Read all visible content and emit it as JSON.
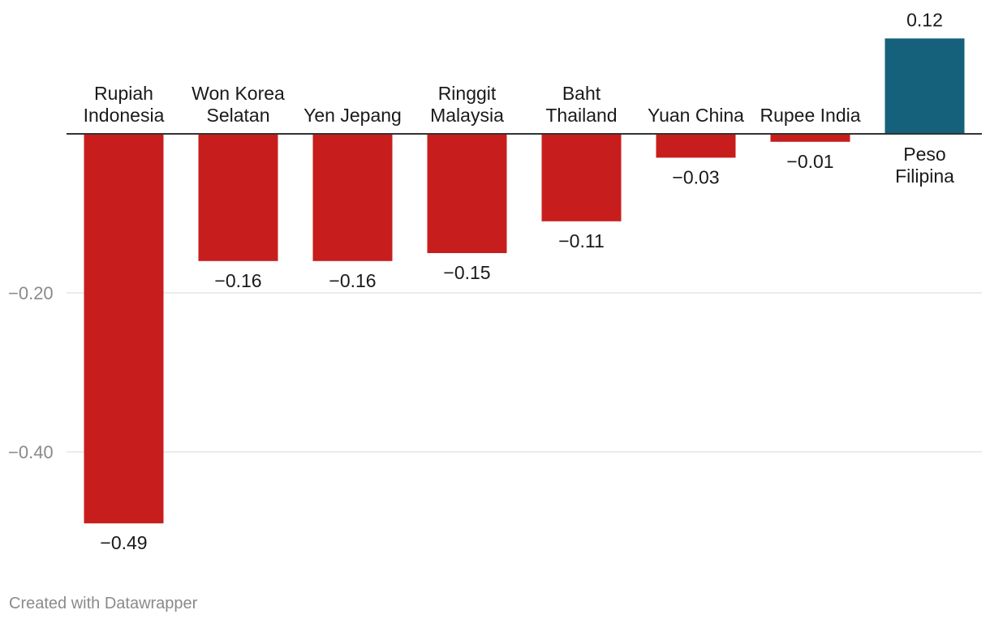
{
  "chart_data": {
    "type": "bar",
    "title": "",
    "xlabel": "",
    "ylabel": "",
    "categories": [
      [
        "Rupiah",
        "Indonesia"
      ],
      [
        "Won Korea",
        "Selatan"
      ],
      [
        "Yen Jepang"
      ],
      [
        "Ringgit",
        "Malaysia"
      ],
      [
        "Baht",
        "Thailand"
      ],
      [
        "Yuan China"
      ],
      [
        "Rupee India"
      ],
      [
        "Peso",
        "Filipina"
      ]
    ],
    "values": [
      -0.49,
      -0.16,
      -0.16,
      -0.15,
      -0.11,
      -0.03,
      -0.01,
      0.12
    ],
    "value_labels": [
      "−0.49",
      "−0.16",
      "−0.16",
      "−0.15",
      "−0.11",
      "−0.03",
      "−0.01",
      "0.12"
    ],
    "yticks": [
      {
        "value": -0.2,
        "label": "−0.20"
      },
      {
        "value": -0.4,
        "label": "−0.40"
      }
    ],
    "ylim": [
      -0.49,
      0.12
    ],
    "grid": true,
    "colors": {
      "negative": "#c71e1d",
      "positive": "#15607a",
      "grid": "#e5e5e5",
      "axis": "#333333",
      "tick_label": "#8a8a8a",
      "label": "#1a1a1a"
    }
  },
  "footer": {
    "credit": "Created with Datawrapper"
  }
}
